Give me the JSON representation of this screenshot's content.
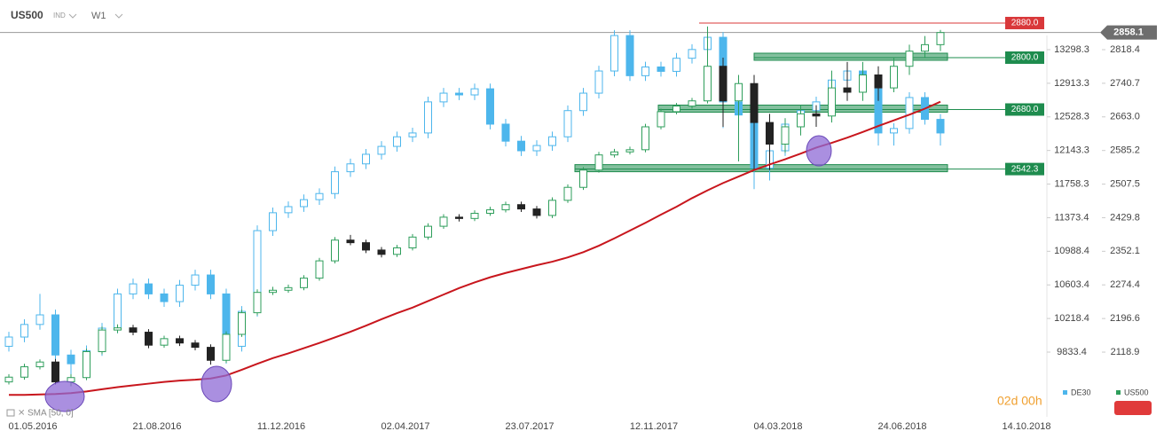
{
  "header": {
    "symbol": "US500",
    "badge": "IND",
    "interval": "W1"
  },
  "chart_data": {
    "type": "candlestick",
    "x_labels": [
      "01.05.2016",
      "21.08.2016",
      "11.12.2016",
      "02.04.2017",
      "23.07.2017",
      "12.11.2017",
      "04.03.2018",
      "24.06.2018",
      "14.10.2018"
    ],
    "ylim": [
      1969.2,
      2933.3
    ],
    "yticks": [
      2818.4,
      2740.7,
      {
        "value": 2663,
        "label": "2663.0"
      },
      2585.2,
      2507.5,
      2429.8,
      2352.1,
      2274.4,
      2196.6,
      2118.9
    ],
    "y2lim": [
      9091.7,
      13867.3
    ],
    "y2ticks": [
      13298.3,
      12913.3,
      12528.3,
      12143.3,
      11758.3,
      11373.4,
      10988.4,
      10603.4,
      10218.4,
      9833.4
    ],
    "series": [
      {
        "name": "DE30",
        "color": "#4db6ec",
        "axis": "y2",
        "ohlc": [
          [
            9900,
            10066,
            9840,
            10006
          ],
          [
            10006,
            10210,
            9946,
            10150
          ],
          [
            10150,
            10500,
            10090,
            10260
          ],
          [
            10260,
            10320,
            9600,
            9800
          ],
          [
            9800,
            9860,
            9450,
            9700
          ],
          [
            9700,
            9910,
            9640,
            9850
          ],
          [
            9850,
            10168,
            9790,
            10108
          ],
          [
            10108,
            10560,
            10048,
            10500
          ],
          [
            10500,
            10675,
            10440,
            10615
          ],
          [
            10615,
            10675,
            10440,
            10500
          ],
          [
            10500,
            10560,
            10352,
            10412
          ],
          [
            10412,
            10660,
            10352,
            10600
          ],
          [
            10600,
            10777,
            10540,
            10717
          ],
          [
            10717,
            10777,
            10440,
            10500
          ],
          [
            10500,
            10560,
            9700,
            9900
          ],
          [
            9900,
            10360,
            9840,
            10300
          ],
          [
            10300,
            11285,
            10240,
            11225
          ],
          [
            11225,
            11490,
            11165,
            11430
          ],
          [
            11430,
            11560,
            11370,
            11500
          ],
          [
            11500,
            11640,
            11440,
            11580
          ],
          [
            11580,
            11710,
            11520,
            11650
          ],
          [
            11650,
            11960,
            11590,
            11900
          ],
          [
            11900,
            12050,
            11840,
            11990
          ],
          [
            11990,
            12160,
            11930,
            12100
          ],
          [
            12100,
            12250,
            12040,
            12190
          ],
          [
            12190,
            12360,
            12130,
            12300
          ],
          [
            12300,
            12404,
            12240,
            12344
          ],
          [
            12344,
            12760,
            12284,
            12700
          ],
          [
            12700,
            12860,
            12640,
            12800
          ],
          [
            12800,
            12860,
            12720,
            12780
          ],
          [
            12780,
            12910,
            12720,
            12850
          ],
          [
            12850,
            12910,
            12385,
            12445
          ],
          [
            12445,
            12505,
            12190,
            12250
          ],
          [
            12250,
            12310,
            12080,
            12140
          ],
          [
            12140,
            12260,
            12080,
            12200
          ],
          [
            12200,
            12360,
            12140,
            12300
          ],
          [
            12300,
            12660,
            12240,
            12600
          ],
          [
            12600,
            12860,
            12540,
            12800
          ],
          [
            12800,
            13114,
            12740,
            13054
          ],
          [
            13054,
            13520,
            12994,
            13460
          ],
          [
            13460,
            13520,
            12940,
            13000
          ],
          [
            13000,
            13160,
            12940,
            13100
          ],
          [
            13100,
            13160,
            12990,
            13050
          ],
          [
            13050,
            13260,
            12990,
            13200
          ],
          [
            13200,
            13360,
            13140,
            13300
          ],
          [
            13300,
            13560,
            13240,
            13440
          ],
          [
            13440,
            13500,
            12400,
            12700
          ],
          [
            12700,
            12900,
            12300,
            12550
          ],
          [
            12550,
            12610,
            11700,
            11940
          ],
          [
            11940,
            12300,
            11800,
            12140
          ],
          [
            12140,
            12505,
            12080,
            12445
          ],
          [
            12445,
            12660,
            12385,
            12600
          ],
          [
            12600,
            12760,
            12540,
            12700
          ],
          [
            12700,
            13010,
            12640,
            12950
          ],
          [
            12950,
            13114,
            12890,
            13054
          ],
          [
            13054,
            13114,
            12790,
            12850
          ],
          [
            12850,
            12910,
            12200,
            12344
          ],
          [
            12344,
            12455,
            12200,
            12395
          ],
          [
            12395,
            12810,
            12335,
            12750
          ],
          [
            12750,
            12810,
            12440,
            12500
          ],
          [
            12500,
            12560,
            12200,
            12344
          ]
        ]
      },
      {
        "name": "US500",
        "color": "#2e9e5b",
        "down_color": "#222222",
        "ohlc": [
          [
            2050,
            2068,
            2044,
            2061
          ],
          [
            2061,
            2092,
            2055,
            2085
          ],
          [
            2085,
            2102,
            2079,
            2096
          ],
          [
            2096,
            2103,
            2044,
            2050
          ],
          [
            2050,
            2068,
            2040,
            2060
          ],
          [
            2060,
            2127,
            2054,
            2120
          ],
          [
            2120,
            2178,
            2114,
            2170
          ],
          [
            2170,
            2183,
            2163,
            2175
          ],
          [
            2175,
            2182,
            2158,
            2165
          ],
          [
            2165,
            2172,
            2128,
            2135
          ],
          [
            2135,
            2157,
            2129,
            2150
          ],
          [
            2150,
            2157,
            2133,
            2140
          ],
          [
            2140,
            2147,
            2123,
            2130
          ],
          [
            2130,
            2137,
            2090,
            2100
          ],
          [
            2100,
            2167,
            2094,
            2160
          ],
          [
            2160,
            2217,
            2154,
            2210
          ],
          [
            2210,
            2264,
            2204,
            2257
          ],
          [
            2257,
            2270,
            2251,
            2262
          ],
          [
            2262,
            2275,
            2256,
            2268
          ],
          [
            2268,
            2297,
            2262,
            2290
          ],
          [
            2290,
            2337,
            2284,
            2330
          ],
          [
            2330,
            2385,
            2324,
            2378
          ],
          [
            2378,
            2390,
            2366,
            2372
          ],
          [
            2372,
            2379,
            2348,
            2355
          ],
          [
            2355,
            2362,
            2338,
            2345
          ],
          [
            2345,
            2367,
            2339,
            2360
          ],
          [
            2360,
            2392,
            2354,
            2385
          ],
          [
            2385,
            2417,
            2379,
            2410
          ],
          [
            2410,
            2438,
            2404,
            2431
          ],
          [
            2431,
            2438,
            2421,
            2428
          ],
          [
            2428,
            2447,
            2422,
            2440
          ],
          [
            2440,
            2455,
            2434,
            2448
          ],
          [
            2448,
            2467,
            2442,
            2460
          ],
          [
            2460,
            2467,
            2443,
            2450
          ],
          [
            2450,
            2457,
            2428,
            2435
          ],
          [
            2435,
            2477,
            2429,
            2470
          ],
          [
            2470,
            2507,
            2464,
            2500
          ],
          [
            2500,
            2547,
            2494,
            2540
          ],
          [
            2540,
            2582,
            2534,
            2575
          ],
          [
            2575,
            2589,
            2569,
            2582
          ],
          [
            2582,
            2594,
            2576,
            2587
          ],
          [
            2587,
            2647,
            2581,
            2640
          ],
          [
            2640,
            2682,
            2634,
            2675
          ],
          [
            2675,
            2695,
            2669,
            2688
          ],
          [
            2688,
            2707,
            2682,
            2700
          ],
          [
            2700,
            2872,
            2694,
            2780
          ],
          [
            2780,
            2800,
            2640,
            2700
          ],
          [
            2700,
            2760,
            2560,
            2740
          ],
          [
            2740,
            2760,
            2540,
            2650
          ],
          [
            2650,
            2670,
            2540,
            2600
          ],
          [
            2600,
            2660,
            2580,
            2640
          ],
          [
            2640,
            2690,
            2620,
            2670
          ],
          [
            2670,
            2690,
            2640,
            2665
          ],
          [
            2665,
            2770,
            2650,
            2730
          ],
          [
            2730,
            2790,
            2700,
            2720
          ],
          [
            2720,
            2790,
            2700,
            2760
          ],
          [
            2760,
            2780,
            2700,
            2730
          ],
          [
            2730,
            2800,
            2720,
            2780
          ],
          [
            2780,
            2830,
            2760,
            2815
          ],
          [
            2815,
            2850,
            2800,
            2830
          ],
          [
            2830,
            2864,
            2815,
            2858
          ]
        ]
      }
    ],
    "sma": {
      "name": "SMA [50, 0]",
      "color": "#c8161d",
      "values": [
        2020,
        2020,
        2021,
        2022,
        2024,
        2028,
        2033,
        2038,
        2042,
        2046,
        2050,
        2053,
        2055,
        2058,
        2065,
        2078,
        2092,
        2105,
        2116,
        2128,
        2140,
        2153,
        2166,
        2180,
        2195,
        2209,
        2222,
        2237,
        2252,
        2267,
        2280,
        2292,
        2302,
        2311,
        2320,
        2328,
        2338,
        2350,
        2365,
        2382,
        2400,
        2418,
        2437,
        2455,
        2475,
        2493,
        2510,
        2525,
        2540,
        2553,
        2565,
        2578,
        2592,
        2603,
        2615,
        2628,
        2642,
        2655,
        2668,
        2682,
        2698
      ]
    },
    "levels": [
      {
        "value": 2880,
        "label": "2880.0",
        "color": "#d9383a"
      },
      {
        "value": 2800,
        "label": "2800.0",
        "color": "#1e8c4e"
      },
      {
        "value": 2680,
        "label": "2680.0",
        "color": "#1e8c4e"
      },
      {
        "value": 2542.3,
        "label": "2542.3",
        "color": "#1e8c4e"
      }
    ],
    "last_price": 2858.1,
    "countdown": "02d 00h"
  }
}
